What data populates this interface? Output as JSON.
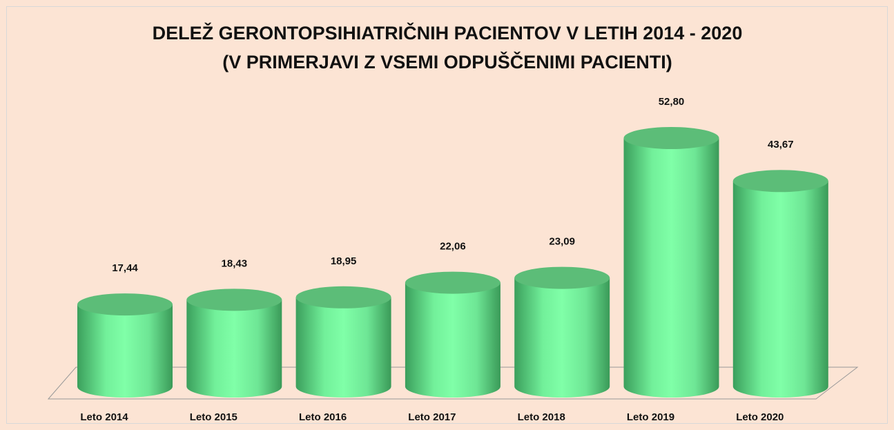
{
  "chart_data": {
    "type": "cylinder",
    "title": "DELEŽ GERONTOPSIHIATRIČNIH PACIENTOV V LETIH 2014 - 2020",
    "subtitle": "(V PRIMERJAVI Z VSEMI ODPUŠČENIMI PACIENTI)",
    "categories": [
      "Leto 2014",
      "Leto 2015",
      "Leto 2016",
      "Leto 2017",
      "Leto 2018",
      "Leto 2019",
      "Leto 2020"
    ],
    "values": [
      17.44,
      18.43,
      18.95,
      22.06,
      23.09,
      52.8,
      43.67
    ],
    "value_labels": [
      "17,44",
      "18,43",
      "18,95",
      "22,06",
      "23,09",
      "52,80",
      "43,67"
    ],
    "color": "#7dfca3"
  }
}
